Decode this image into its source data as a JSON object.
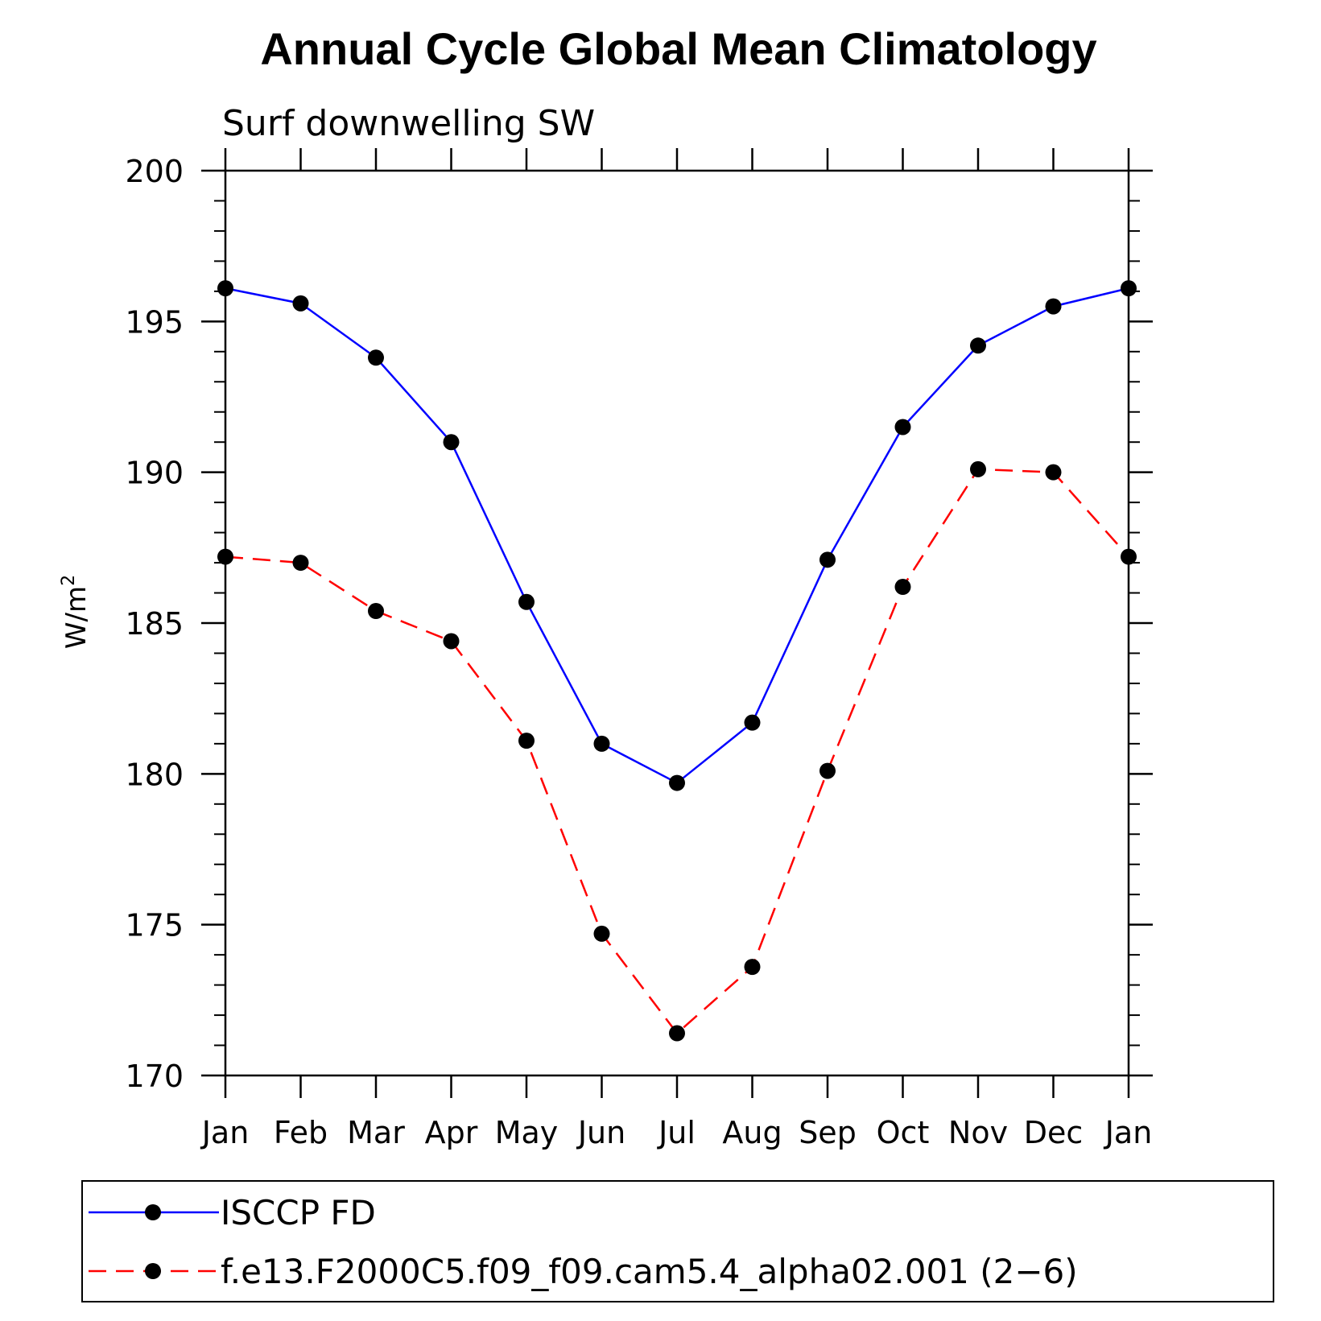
{
  "chart_data": {
    "type": "line",
    "title": "Annual Cycle Global Mean Climatology",
    "subtitle": "Surf downwelling SW",
    "ylabel": "W/m",
    "ylabel_superscript": "2",
    "xlabel": "",
    "categories": [
      "Jan",
      "Feb",
      "Mar",
      "Apr",
      "May",
      "Jun",
      "Jul",
      "Aug",
      "Sep",
      "Oct",
      "Nov",
      "Dec",
      "Jan"
    ],
    "ylim": [
      170,
      200
    ],
    "yticks": [
      170,
      175,
      180,
      185,
      190,
      195,
      200
    ],
    "grid": false,
    "legend_position": "bottom",
    "series": [
      {
        "name": "ISCCP FD",
        "color": "#0000ff",
        "dash": "solid",
        "values": [
          196.1,
          195.6,
          193.8,
          191.0,
          185.7,
          181.0,
          179.7,
          181.7,
          187.1,
          191.5,
          194.2,
          195.5,
          196.1
        ]
      },
      {
        "name": "f.e13.F2000C5.f09_f09.cam5.4_alpha02.001 (2−6)",
        "color": "#ff0000",
        "dash": "dashed",
        "values": [
          187.2,
          187.0,
          185.4,
          184.4,
          181.1,
          174.7,
          171.4,
          173.6,
          180.1,
          186.2,
          190.1,
          190.0,
          187.2
        ]
      }
    ]
  }
}
